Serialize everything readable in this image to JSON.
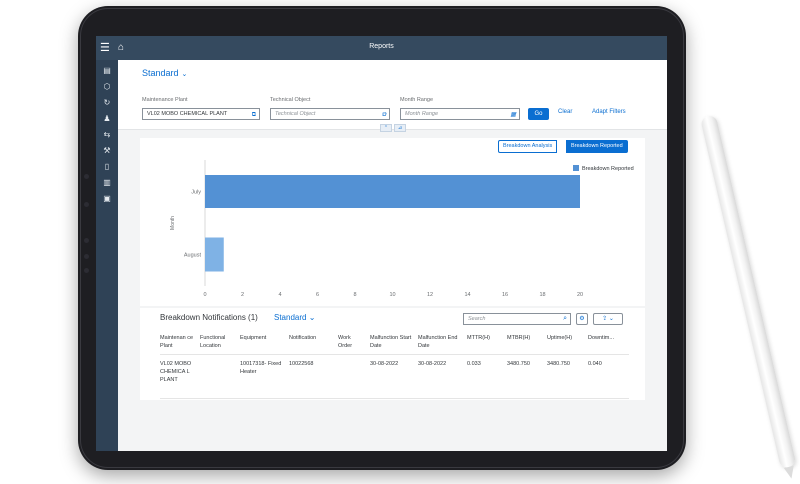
{
  "shell": {
    "title": "Reports"
  },
  "filters": {
    "variant": "Standard",
    "plant_label": "Maintenance Plant",
    "plant_value": "VL02 MOBO CHEMICAL PLANT",
    "tech_label": "Technical Object",
    "tech_placeholder": "Technical Object",
    "month_label": "Month Range",
    "month_placeholder": "Month Range",
    "go": "Go",
    "clear": "Clear",
    "adapt": "Adapt Filters"
  },
  "chart_toggle": {
    "analysis": "Breakdown Analysis",
    "reported": "Breakdown Reported"
  },
  "chart_data": {
    "type": "bar",
    "orientation": "horizontal",
    "categories": [
      "July",
      "August"
    ],
    "series": [
      {
        "name": "Breakdown Reported",
        "values": [
          20,
          1
        ]
      }
    ],
    "ylabel": "Month",
    "xticks": [
      "0",
      "2",
      "4",
      "6",
      "8",
      "10",
      "12",
      "14",
      "16",
      "18",
      "20"
    ],
    "xlim": [
      0,
      20
    ],
    "color": "#5b9bd5",
    "legend": "top-right"
  },
  "table": {
    "title": "Breakdown Notifications (1)",
    "variant": "Standard",
    "search_placeholder": "Search",
    "columns": [
      "Maintenan ce Plant",
      "Functional Location",
      "Equipment",
      "Notification",
      "Work Order",
      "Malfunction Start Date",
      "Malfunction End Date",
      "MTTR(H)",
      "MTBR(H)",
      "Uptime(H)",
      "Downtim..."
    ],
    "rows": [
      [
        "VL02 MOBO CHEMICA L PLANT",
        "",
        "10017318- Fixed Heater",
        "10022568",
        "",
        "30-08-2022",
        "30-08-2022",
        "0.033",
        "3480.750",
        "3480.750",
        "0.040"
      ]
    ]
  }
}
